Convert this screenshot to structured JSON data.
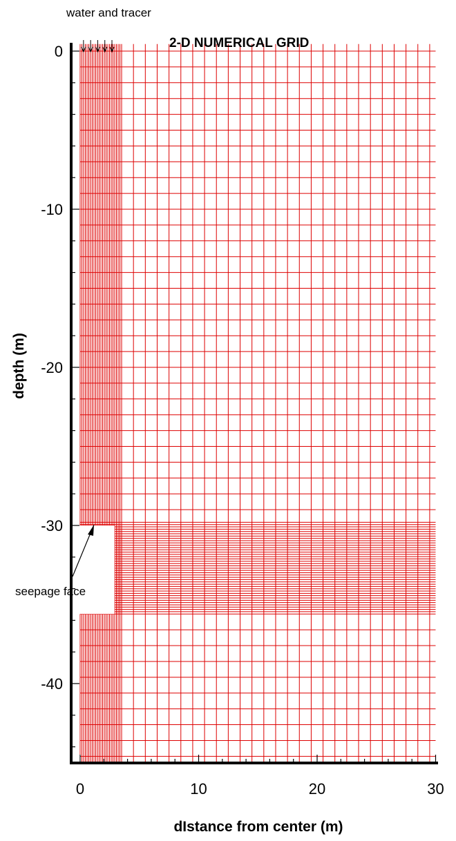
{
  "title": "2-D NUMERICAL GRID",
  "annotations": {
    "top": "water and tracer",
    "seepage": "seepage face"
  },
  "colors": {
    "grid": "#dd0000",
    "axis": "#000000",
    "background": "#ffffff"
  },
  "axes": {
    "x": {
      "label": "dIstance from center (m)",
      "ticks": [
        "0",
        "10",
        "20",
        "30"
      ],
      "range": [
        0,
        30
      ]
    },
    "y": {
      "label": "depth (m)",
      "ticks": [
        "0",
        "-10",
        "-20",
        "-30",
        "-40"
      ],
      "range": [
        -45,
        0.5
      ]
    }
  },
  "grid": {
    "x_extent": [
      0,
      30
    ],
    "depth_extent": [
      0,
      -45
    ],
    "fine_column_x_range": [
      0,
      3.5
    ],
    "fine_band_depth_range": [
      -29.8,
      -35.6
    ],
    "seepage_face": {
      "x_range": [
        0,
        2.9
      ],
      "depth_range": [
        -30,
        -35.6
      ]
    }
  }
}
